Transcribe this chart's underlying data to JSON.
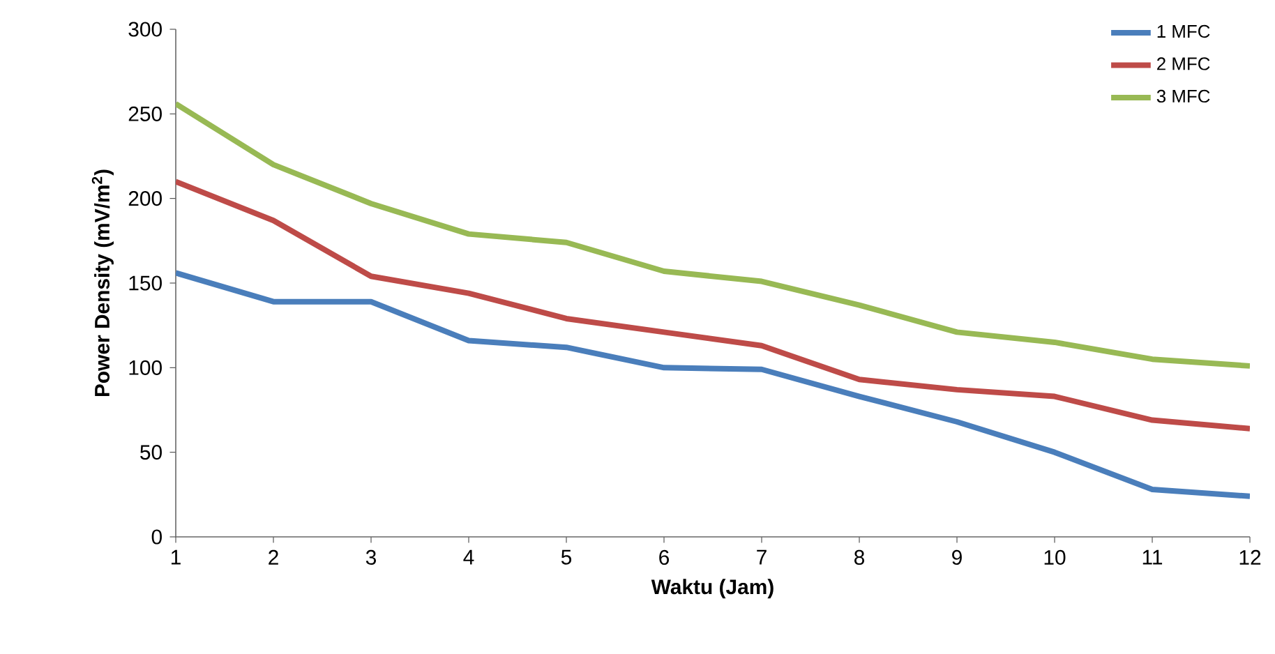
{
  "chart_data": {
    "type": "line",
    "xlabel": "Waktu (Jam)",
    "ylabel": "Power Density  (mV/m$^{2}$)",
    "x": [
      1,
      2,
      3,
      4,
      5,
      6,
      7,
      8,
      9,
      10,
      11,
      12
    ],
    "series": [
      {
        "name": "1 MFC",
        "color": "#4a7ebb",
        "values": [
          156,
          139,
          139,
          116,
          112,
          100,
          99,
          83,
          68,
          50,
          28,
          24
        ]
      },
      {
        "name": "2 MFC",
        "color": "#be4b48",
        "values": [
          210,
          187,
          154,
          144,
          129,
          121,
          113,
          93,
          87,
          83,
          69,
          64
        ]
      },
      {
        "name": "3 MFC",
        "color": "#98b954",
        "values": [
          256,
          220,
          197,
          179,
          174,
          157,
          151,
          137,
          121,
          115,
          105,
          101
        ]
      }
    ],
    "xlim": [
      1,
      12
    ],
    "xticks": [
      1,
      2,
      3,
      4,
      5,
      6,
      7,
      8,
      9,
      10,
      11,
      12
    ],
    "ylim": [
      0,
      300
    ],
    "yticks": [
      0,
      50,
      100,
      150,
      200,
      250,
      300
    ],
    "grid": false,
    "legend": "top right",
    "marker": "none",
    "line_style": "solid"
  }
}
